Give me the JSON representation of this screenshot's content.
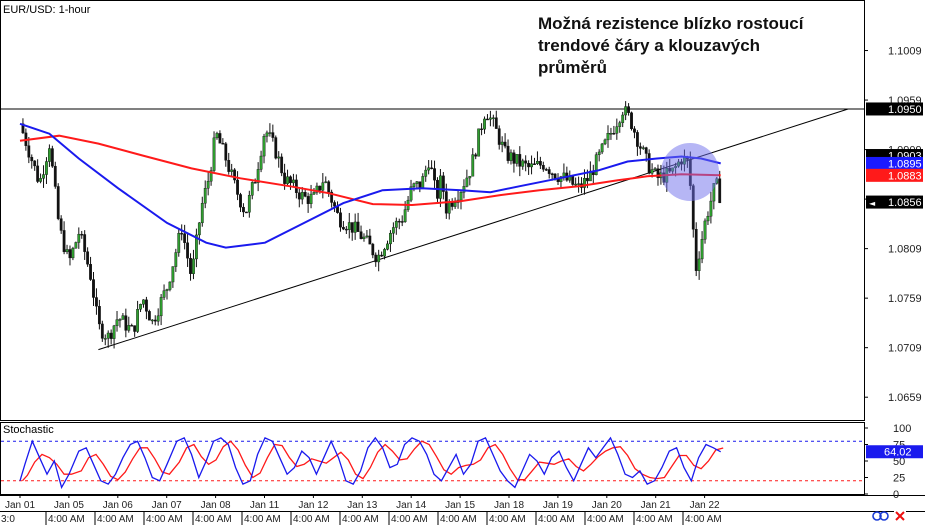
{
  "chart_data": {
    "type": "candlestick",
    "title": "EUR/USD: 1-hour",
    "annotation": "Možná rezistence blízko rostoucí trendové čáry a klouzavých průměrů",
    "annotation_lines": [
      "Možná rezistence blízko rostoucí",
      "trendové čáry a klouzavých",
      "průměrů"
    ],
    "ylim": [
      1.0638,
      1.1058
    ],
    "y_ticks": [
      "1.1009",
      "1.0959",
      "1.0909",
      "1.0859",
      "1.0809",
      "1.0759",
      "1.0709",
      "1.0659"
    ],
    "price_labels": [
      {
        "value": "1.0950",
        "bg": "#000000",
        "fg": "#ffffff"
      },
      {
        "value": "1.0903",
        "bg": "#000000",
        "fg": "#ffffff"
      },
      {
        "value": "1.0895",
        "bg": "#1a1aff",
        "fg": "#ffffff"
      },
      {
        "value": "1.0883",
        "bg": "#ff1a1a",
        "fg": "#ffffff"
      },
      {
        "value": "1.0856",
        "bg": "#000000",
        "fg": "#ffffff",
        "marker": "◄"
      }
    ],
    "date_labels": [
      "Jan 01",
      "Jan 05",
      "Jan 06",
      "Jan 07",
      "Jan 08",
      "Jan 11",
      "Jan 12",
      "Jan 13",
      "Jan 14",
      "Jan 15",
      "Jan 18",
      "Jan 19",
      "Jan 20",
      "Jan 21",
      "Jan 22"
    ],
    "time_labels": [
      "3:0",
      "4:00 AM",
      "4:00 AM",
      "4:00 AM",
      "4:00 AM",
      "4:00 AM",
      "4:00 AM",
      "4:00 AM",
      "4:00 AM",
      "4:00 AM",
      "4:00 AM",
      "4:00 AM",
      "4:00 AM",
      "4:00 AM",
      "4:00 AM"
    ],
    "resistance_level": 1.095,
    "trendline": {
      "start": [
        1.6,
        1.0707
      ],
      "end": [
        16.9,
        1.095
      ]
    },
    "close_path": [
      [
        0,
        1.0935
      ],
      [
        0.4,
        1.0875
      ],
      [
        0.6,
        1.0915
      ],
      [
        0.8,
        1.083
      ],
      [
        1.0,
        1.0795
      ],
      [
        1.2,
        1.0825
      ],
      [
        1.3,
        1.081
      ],
      [
        1.45,
        1.078
      ],
      [
        1.6,
        1.073
      ],
      [
        1.8,
        1.072
      ],
      [
        2.0,
        1.074
      ],
      [
        2.3,
        1.0725
      ],
      [
        2.5,
        1.076
      ],
      [
        2.7,
        1.0735
      ],
      [
        3.0,
        1.077
      ],
      [
        3.3,
        1.083
      ],
      [
        3.5,
        1.078
      ],
      [
        3.7,
        1.085
      ],
      [
        3.85,
        1.088
      ],
      [
        4.0,
        1.0925
      ],
      [
        4.2,
        1.09
      ],
      [
        4.4,
        1.087
      ],
      [
        4.6,
        1.0845
      ],
      [
        4.8,
        1.088
      ],
      [
        5.0,
        1.093
      ],
      [
        5.2,
        1.091
      ],
      [
        5.4,
        1.088
      ],
      [
        5.6,
        1.087
      ],
      [
        5.8,
        1.086
      ],
      [
        6.0,
        1.086
      ],
      [
        6.2,
        1.088
      ],
      [
        6.5,
        1.084
      ],
      [
        6.8,
        1.083
      ],
      [
        7.0,
        1.082
      ],
      [
        7.3,
        1.08
      ],
      [
        7.6,
        1.083
      ],
      [
        7.8,
        1.084
      ],
      [
        8.0,
        1.087
      ],
      [
        8.2,
        1.0875
      ],
      [
        8.35,
        1.09
      ],
      [
        8.5,
        1.086
      ],
      [
        8.6,
        1.088
      ],
      [
        8.7,
        1.085
      ],
      [
        9.0,
        1.087
      ],
      [
        9.2,
        1.089
      ],
      [
        9.5,
        1.095
      ],
      [
        9.7,
        1.093
      ],
      [
        9.9,
        1.0905
      ],
      [
        10.2,
        1.0895
      ],
      [
        10.4,
        1.089
      ],
      [
        10.7,
        1.0895
      ],
      [
        10.9,
        1.0885
      ],
      [
        11.1,
        1.088
      ],
      [
        11.4,
        1.087
      ],
      [
        11.6,
        1.088
      ],
      [
        11.9,
        1.091
      ],
      [
        12.1,
        1.093
      ],
      [
        12.3,
        1.095
      ],
      [
        12.45,
        1.094
      ],
      [
        12.6,
        1.092
      ],
      [
        12.8,
        1.0895
      ],
      [
        13.0,
        1.088
      ],
      [
        13.3,
        1.0885
      ],
      [
        13.5,
        1.09
      ],
      [
        13.65,
        1.0895
      ],
      [
        13.75,
        1.082
      ],
      [
        13.8,
        1.079
      ],
      [
        14.0,
        1.084
      ],
      [
        14.2,
        1.0875
      ],
      [
        14.3,
        1.086
      ]
    ],
    "ma_blue": [
      [
        0,
        1.0935
      ],
      [
        0.6,
        1.0925
      ],
      [
        1.2,
        1.09
      ],
      [
        2.0,
        1.087
      ],
      [
        3.0,
        1.0835
      ],
      [
        3.8,
        1.0815
      ],
      [
        4.2,
        1.081
      ],
      [
        5.0,
        1.0815
      ],
      [
        5.8,
        1.0835
      ],
      [
        6.6,
        1.0855
      ],
      [
        7.4,
        1.0868
      ],
      [
        8.2,
        1.087
      ],
      [
        9.0,
        1.0868
      ],
      [
        9.6,
        1.0866
      ],
      [
        10.2,
        1.0872
      ],
      [
        11.0,
        1.088
      ],
      [
        11.8,
        1.0888
      ],
      [
        12.4,
        1.0897
      ],
      [
        13.0,
        1.09
      ],
      [
        13.5,
        1.0902
      ],
      [
        13.9,
        1.09
      ],
      [
        14.3,
        1.0895
      ]
    ],
    "ma_red": [
      [
        0,
        1.0918
      ],
      [
        0.8,
        1.0923
      ],
      [
        1.6,
        1.0915
      ],
      [
        2.5,
        1.0903
      ],
      [
        3.5,
        1.089
      ],
      [
        4.5,
        1.088
      ],
      [
        5.5,
        1.0872
      ],
      [
        6.3,
        1.0865
      ],
      [
        7.2,
        1.0854
      ],
      [
        8.0,
        1.0853
      ],
      [
        9.0,
        1.0857
      ],
      [
        9.8,
        1.0863
      ],
      [
        10.6,
        1.0868
      ],
      [
        11.4,
        1.0872
      ],
      [
        12.2,
        1.0878
      ],
      [
        12.8,
        1.0882
      ],
      [
        13.5,
        1.0884
      ],
      [
        14.3,
        1.0883
      ]
    ],
    "stochastic": {
      "label": "Stochastic",
      "y_ticks": [
        "100",
        "75",
        "50",
        "25",
        "0"
      ],
      "level_high": 80,
      "level_low": 20,
      "current_label": "64.02",
      "k_path": [
        [
          0,
          20
        ],
        [
          0.1,
          45
        ],
        [
          0.25,
          80
        ],
        [
          0.4,
          55
        ],
        [
          0.55,
          30
        ],
        [
          0.7,
          50
        ],
        [
          0.85,
          10
        ],
        [
          1.0,
          30
        ],
        [
          1.2,
          65
        ],
        [
          1.35,
          70
        ],
        [
          1.5,
          45
        ],
        [
          1.65,
          20
        ],
        [
          1.8,
          15
        ],
        [
          1.95,
          30
        ],
        [
          2.1,
          55
        ],
        [
          2.25,
          75
        ],
        [
          2.4,
          80
        ],
        [
          2.55,
          55
        ],
        [
          2.7,
          25
        ],
        [
          2.85,
          20
        ],
        [
          3.0,
          45
        ],
        [
          3.2,
          80
        ],
        [
          3.35,
          85
        ],
        [
          3.5,
          60
        ],
        [
          3.65,
          25
        ],
        [
          3.8,
          50
        ],
        [
          3.95,
          80
        ],
        [
          4.1,
          85
        ],
        [
          4.25,
          75
        ],
        [
          4.4,
          40
        ],
        [
          4.55,
          15
        ],
        [
          4.7,
          20
        ],
        [
          4.85,
          60
        ],
        [
          5.0,
          85
        ],
        [
          5.15,
          80
        ],
        [
          5.3,
          55
        ],
        [
          5.45,
          30
        ],
        [
          5.6,
          40
        ],
        [
          5.75,
          65
        ],
        [
          5.9,
          55
        ],
        [
          6.05,
          30
        ],
        [
          6.2,
          55
        ],
        [
          6.35,
          80
        ],
        [
          6.5,
          55
        ],
        [
          6.65,
          20
        ],
        [
          6.8,
          15
        ],
        [
          6.95,
          35
        ],
        [
          7.1,
          70
        ],
        [
          7.25,
          85
        ],
        [
          7.4,
          70
        ],
        [
          7.55,
          40
        ],
        [
          7.7,
          45
        ],
        [
          7.85,
          75
        ],
        [
          8.0,
          85
        ],
        [
          8.15,
          80
        ],
        [
          8.3,
          60
        ],
        [
          8.45,
          30
        ],
        [
          8.6,
          20
        ],
        [
          8.75,
          40
        ],
        [
          8.9,
          60
        ],
        [
          9.05,
          30
        ],
        [
          9.2,
          45
        ],
        [
          9.35,
          80
        ],
        [
          9.5,
          85
        ],
        [
          9.65,
          60
        ],
        [
          9.8,
          35
        ],
        [
          9.95,
          20
        ],
        [
          10.1,
          10
        ],
        [
          10.25,
          35
        ],
        [
          10.4,
          60
        ],
        [
          10.55,
          50
        ],
        [
          10.7,
          30
        ],
        [
          10.85,
          55
        ],
        [
          11.0,
          65
        ],
        [
          11.15,
          40
        ],
        [
          11.3,
          20
        ],
        [
          11.45,
          45
        ],
        [
          11.6,
          70
        ],
        [
          11.75,
          55
        ],
        [
          11.9,
          70
        ],
        [
          12.05,
          85
        ],
        [
          12.2,
          60
        ],
        [
          12.35,
          30
        ],
        [
          12.5,
          25
        ],
        [
          12.65,
          35
        ],
        [
          12.8,
          15
        ],
        [
          12.95,
          20
        ],
        [
          13.1,
          40
        ],
        [
          13.25,
          65
        ],
        [
          13.4,
          70
        ],
        [
          13.55,
          40
        ],
        [
          13.7,
          20
        ],
        [
          13.85,
          55
        ],
        [
          14.0,
          75
        ],
        [
          14.15,
          70
        ],
        [
          14.3,
          64
        ]
      ]
    }
  }
}
